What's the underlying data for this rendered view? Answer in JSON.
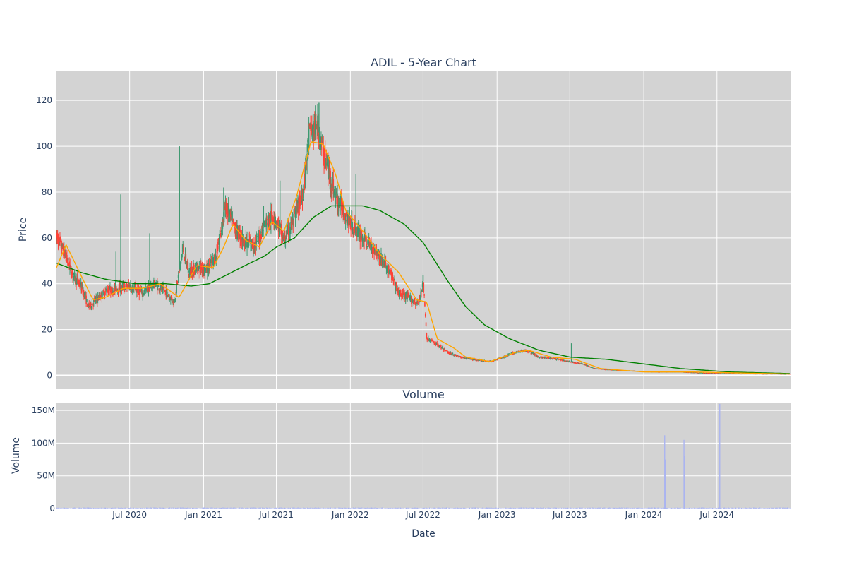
{
  "chart_data": [
    {
      "type": "candlestick",
      "title": "ADIL - 5-Year Chart",
      "ylabel": "Price",
      "ylim": [
        -6,
        133
      ],
      "yticks": [
        0,
        20,
        40,
        60,
        80,
        100,
        120
      ],
      "grid": true,
      "background": "#d3d3d3",
      "colors": {
        "increasing": "#3d9970",
        "decreasing": "#ff4136",
        "ma_short": "#ffa500",
        "ma_long": "#008000"
      },
      "price_keypoints": [
        [
          "2020-01-02",
          60
        ],
        [
          "2020-01-20",
          54
        ],
        [
          "2020-02-10",
          44
        ],
        [
          "2020-03-05",
          38
        ],
        [
          "2020-03-20",
          30
        ],
        [
          "2020-04-10",
          33
        ],
        [
          "2020-05-05",
          37
        ],
        [
          "2020-06-01",
          38
        ],
        [
          "2020-07-01",
          39
        ],
        [
          "2020-08-01",
          36
        ],
        [
          "2020-09-01",
          40
        ],
        [
          "2020-10-01",
          36
        ],
        [
          "2020-10-20",
          32
        ],
        [
          "2020-11-10",
          55
        ],
        [
          "2020-11-25",
          45
        ],
        [
          "2020-12-20",
          47
        ],
        [
          "2021-01-10",
          46
        ],
        [
          "2021-02-01",
          52
        ],
        [
          "2021-02-25",
          74
        ],
        [
          "2021-03-20",
          64
        ],
        [
          "2021-04-15",
          58
        ],
        [
          "2021-05-10",
          57
        ],
        [
          "2021-06-01",
          66
        ],
        [
          "2021-06-25",
          70
        ],
        [
          "2021-07-20",
          59
        ],
        [
          "2021-08-10",
          66
        ],
        [
          "2021-09-05",
          80
        ],
        [
          "2021-09-20",
          105
        ],
        [
          "2021-10-10",
          110
        ],
        [
          "2021-10-25",
          98
        ],
        [
          "2021-11-10",
          88
        ],
        [
          "2021-11-25",
          78
        ],
        [
          "2021-12-15",
          72
        ],
        [
          "2022-01-05",
          65
        ],
        [
          "2022-02-01",
          60
        ],
        [
          "2022-03-01",
          55
        ],
        [
          "2022-04-01",
          48
        ],
        [
          "2022-05-01",
          36
        ],
        [
          "2022-06-01",
          33
        ],
        [
          "2022-06-20",
          31
        ],
        [
          "2022-07-01",
          42
        ],
        [
          "2022-07-10",
          16
        ],
        [
          "2022-08-01",
          14
        ],
        [
          "2022-09-01",
          10
        ],
        [
          "2022-10-01",
          8
        ],
        [
          "2022-11-01",
          7
        ],
        [
          "2022-12-15",
          6
        ],
        [
          "2023-01-15",
          8
        ],
        [
          "2023-02-15",
          10
        ],
        [
          "2023-03-15",
          11
        ],
        [
          "2023-04-15",
          8
        ],
        [
          "2023-06-01",
          7
        ],
        [
          "2023-07-01",
          6
        ],
        [
          "2023-08-01",
          5
        ],
        [
          "2023-09-01",
          3
        ],
        [
          "2023-10-01",
          2.5
        ],
        [
          "2023-12-01",
          2
        ],
        [
          "2024-02-01",
          1.5
        ],
        [
          "2024-04-01",
          1.5
        ],
        [
          "2024-06-01",
          1
        ],
        [
          "2024-08-01",
          0.8
        ],
        [
          "2024-10-01",
          0.7
        ],
        [
          "2024-12-31",
          0.6
        ]
      ],
      "spikes": [
        [
          "2020-06-09",
          79
        ],
        [
          "2020-05-28",
          54
        ],
        [
          "2020-08-20",
          62
        ],
        [
          "2020-11-02",
          100
        ],
        [
          "2021-02-20",
          82
        ],
        [
          "2021-05-30",
          74
        ],
        [
          "2021-07-10",
          85
        ],
        [
          "2021-10-15",
          119
        ],
        [
          "2022-01-15",
          88
        ],
        [
          "2023-07-05",
          14
        ]
      ],
      "ma_short": [
        [
          "2020-01-01",
          47
        ],
        [
          "2020-01-25",
          57
        ],
        [
          "2020-03-01",
          44
        ],
        [
          "2020-04-01",
          33
        ],
        [
          "2020-05-01",
          34
        ],
        [
          "2020-06-15",
          38
        ],
        [
          "2020-08-01",
          38
        ],
        [
          "2020-09-15",
          40
        ],
        [
          "2020-11-01",
          34
        ],
        [
          "2020-12-15",
          48
        ],
        [
          "2021-01-25",
          47
        ],
        [
          "2021-02-20",
          56
        ],
        [
          "2021-03-15",
          66
        ],
        [
          "2021-04-15",
          59
        ],
        [
          "2021-05-20",
          56
        ],
        [
          "2021-06-20",
          67
        ],
        [
          "2021-07-20",
          63
        ],
        [
          "2021-08-20",
          78
        ],
        [
          "2021-09-25",
          102
        ],
        [
          "2021-10-25",
          101
        ],
        [
          "2021-11-25",
          88
        ],
        [
          "2021-12-20",
          72
        ],
        [
          "2022-02-01",
          63
        ],
        [
          "2022-03-15",
          53
        ],
        [
          "2022-05-01",
          45
        ],
        [
          "2022-06-15",
          33
        ],
        [
          "2022-07-10",
          32
        ],
        [
          "2022-08-05",
          16
        ],
        [
          "2022-09-15",
          12
        ],
        [
          "2022-10-15",
          8
        ],
        [
          "2022-12-15",
          6
        ],
        [
          "2023-02-15",
          10
        ],
        [
          "2023-03-20",
          11
        ],
        [
          "2023-05-15",
          8
        ],
        [
          "2023-07-15",
          7
        ],
        [
          "2023-09-15",
          3
        ],
        [
          "2024-01-01",
          1.5
        ],
        [
          "2024-05-01",
          1.5
        ],
        [
          "2024-12-31",
          0.6
        ]
      ],
      "ma_long": [
        [
          "2020-01-01",
          49
        ],
        [
          "2020-03-01",
          45
        ],
        [
          "2020-05-01",
          42
        ],
        [
          "2020-07-15",
          40
        ],
        [
          "2020-10-01",
          40
        ],
        [
          "2020-12-01",
          39
        ],
        [
          "2021-01-15",
          40
        ],
        [
          "2021-03-01",
          44
        ],
        [
          "2021-04-15",
          48
        ],
        [
          "2021-06-01",
          52
        ],
        [
          "2021-07-01",
          56
        ],
        [
          "2021-08-15",
          60
        ],
        [
          "2021-10-01",
          69
        ],
        [
          "2021-11-15",
          74
        ],
        [
          "2022-02-01",
          74
        ],
        [
          "2022-03-15",
          72
        ],
        [
          "2022-05-15",
          66
        ],
        [
          "2022-07-01",
          58
        ],
        [
          "2022-09-01",
          41
        ],
        [
          "2022-10-15",
          30
        ],
        [
          "2022-12-01",
          22
        ],
        [
          "2023-02-01",
          16
        ],
        [
          "2023-04-15",
          11
        ],
        [
          "2023-07-01",
          8
        ],
        [
          "2023-10-01",
          7
        ],
        [
          "2024-01-01",
          5
        ],
        [
          "2024-04-01",
          3
        ],
        [
          "2024-08-01",
          1.5
        ],
        [
          "2024-12-31",
          0.8
        ]
      ]
    },
    {
      "type": "bar",
      "title": "Volume",
      "xlabel": "Date",
      "ylabel": "Volume",
      "ylim": [
        0,
        162000000
      ],
      "yticks": [
        0,
        50000000,
        100000000,
        150000000
      ],
      "ytick_labels": [
        "0",
        "50M",
        "100M",
        "150M"
      ],
      "xlim": [
        "2020-01-01",
        "2024-12-31"
      ],
      "xtick_labels": [
        "Jul 2020",
        "Jan 2021",
        "Jul 2021",
        "Jan 2022",
        "Jul 2022",
        "Jan 2023",
        "Jul 2023",
        "Jan 2024",
        "Jul 2024"
      ],
      "xtick_dates": [
        "2020-07-01",
        "2021-01-01",
        "2021-07-01",
        "2022-01-01",
        "2022-07-01",
        "2023-01-01",
        "2023-07-01",
        "2024-01-01",
        "2024-07-01"
      ],
      "bar_color": "#aab4f0",
      "volume_spikes": [
        [
          "2024-02-22",
          112000000
        ],
        [
          "2024-02-24",
          75000000
        ],
        [
          "2024-04-10",
          105000000
        ],
        [
          "2024-04-12",
          80000000
        ],
        [
          "2024-07-08",
          160000000
        ]
      ]
    }
  ]
}
